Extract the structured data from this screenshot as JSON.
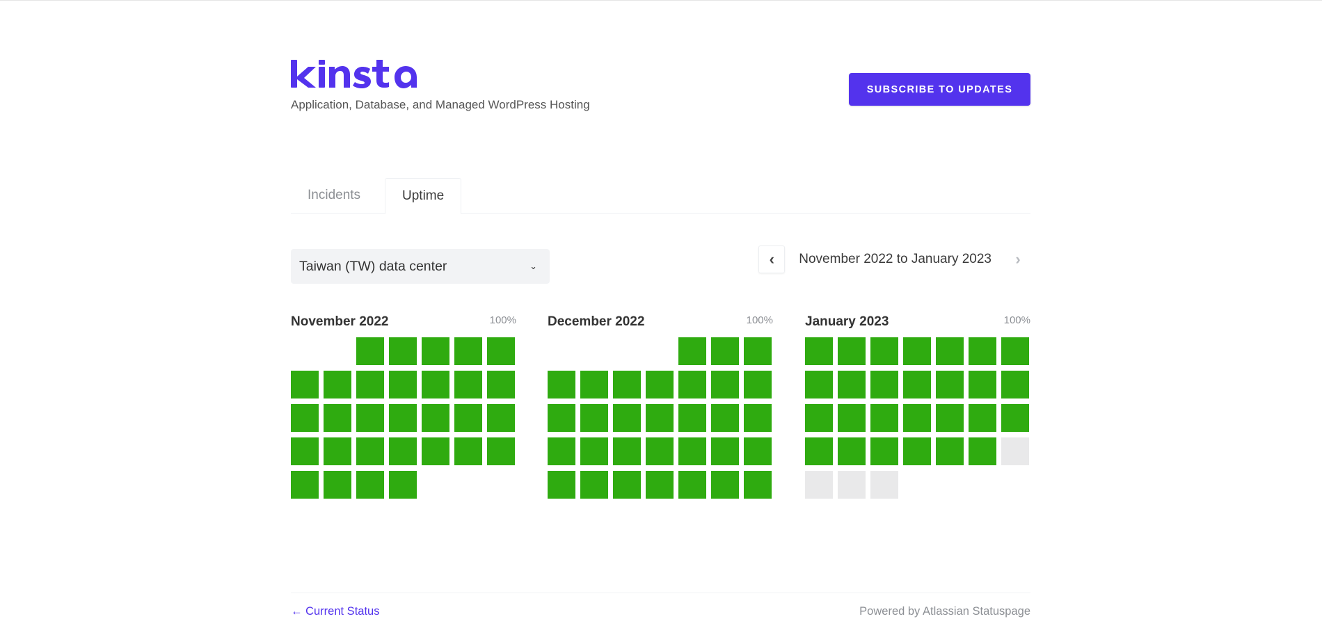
{
  "header": {
    "brand": "kinsta",
    "brand_color": "#5333ed",
    "tagline": "Application, Database, and Managed WordPress Hosting",
    "subscribe_label": "SUBSCRIBE TO UPDATES"
  },
  "tabs": [
    {
      "label": "Incidents",
      "active": false
    },
    {
      "label": "Uptime",
      "active": true
    }
  ],
  "controls": {
    "data_center": "Taiwan (TW) data center",
    "chevron_icon": "chevron-down-icon",
    "range_label": "November 2022 to January 2023",
    "prev_icon": "chevron-left-icon",
    "next_icon": "chevron-right-icon"
  },
  "colors": {
    "up": "#2fab10",
    "future": "#e9e9ea"
  },
  "months": [
    {
      "title": "November 2022",
      "uptime": "100%",
      "offset": 2,
      "days_up": 30,
      "days_future": 0
    },
    {
      "title": "December 2022",
      "uptime": "100%",
      "offset": 4,
      "days_up": 31,
      "days_future": 0
    },
    {
      "title": "January 2023",
      "uptime": "100%",
      "offset": 0,
      "days_up": 27,
      "days_future": 4
    }
  ],
  "footer": {
    "back_label": "← Current Status",
    "powered_label": "Powered by Atlassian Statuspage"
  }
}
